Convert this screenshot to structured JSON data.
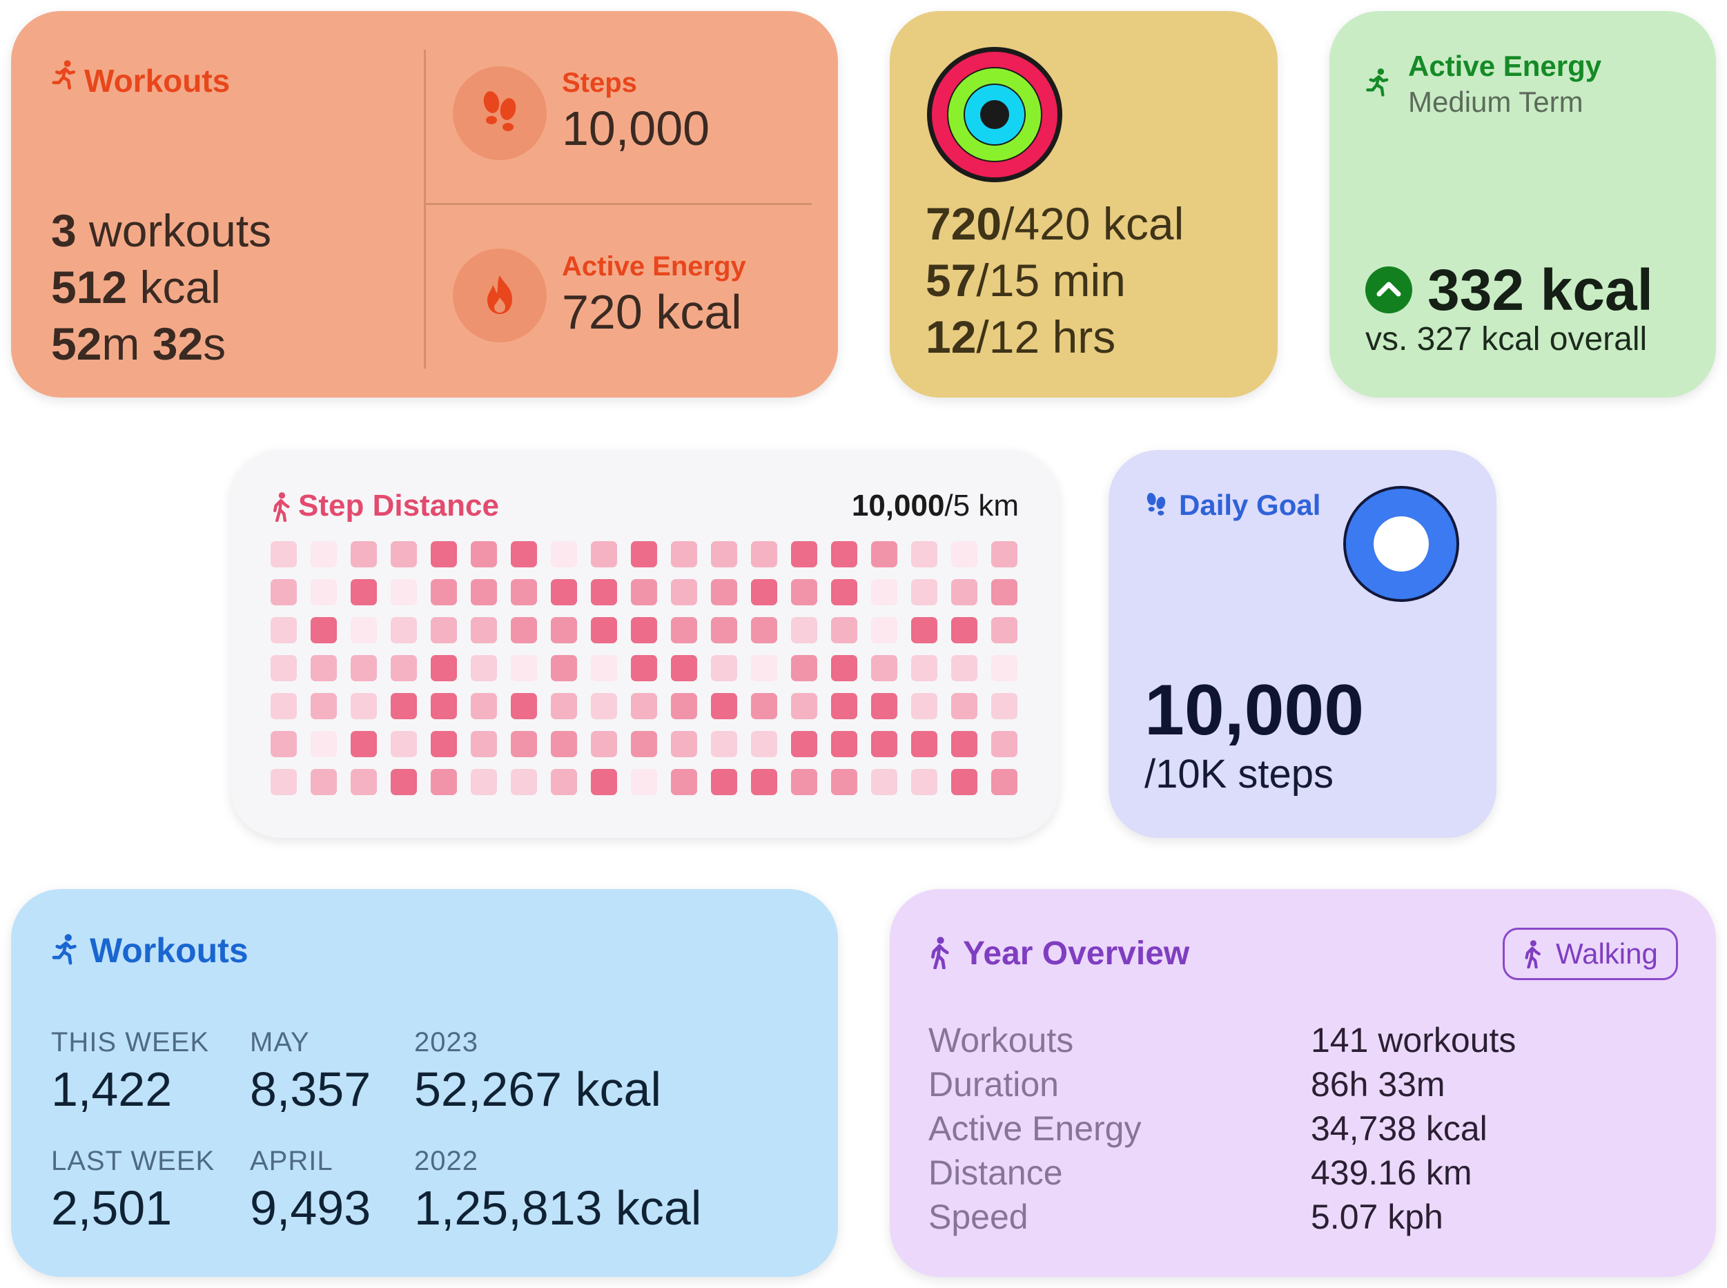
{
  "colors": {
    "workouts_accent": "#e8461c",
    "green_accent": "#158a27",
    "step_pink": "#e24b6e",
    "goal_blue": "#2f62d8",
    "workouts_blue": "#1a66d0",
    "year_purple": "#7f3ec0"
  },
  "workouts_card": {
    "title": "Workouts",
    "count": "3",
    "count_unit": " workouts",
    "energy": "512",
    "energy_unit": " kcal",
    "duration_min": "52",
    "duration_min_unit": "m ",
    "duration_sec": "32",
    "duration_sec_unit": "s",
    "steps_label": "Steps",
    "steps_value": "10,000",
    "active_label": "Active Energy",
    "active_value": "720 kcal"
  },
  "rings_card": {
    "move_current": "720",
    "move_goal": "/420 kcal",
    "exercise_current": "57",
    "exercise_goal": "/15 min",
    "stand_current": "12",
    "stand_goal": "/12 hrs",
    "rings": [
      {
        "name": "move",
        "color": "#ed1f56",
        "track": "#6a0f2a",
        "progress": 1.0
      },
      {
        "name": "exercise",
        "color": "#8bf02c",
        "track": "#2c5a0b",
        "progress": 1.0
      },
      {
        "name": "stand",
        "color": "#14d4f4",
        "track": "#0a4a57",
        "progress": 1.0
      }
    ]
  },
  "energy_card": {
    "title": "Active Energy",
    "subtitle": "Medium Term",
    "value": "332 kcal",
    "comparison": "vs. 327 kcal overall"
  },
  "step_distance_card": {
    "title": "Step Distance",
    "current": "10,000",
    "goal": "/5 km",
    "palette": [
      "#fce8ee",
      "#f8cfda",
      "#f5b2c3",
      "#f194a9",
      "#ec6c89"
    ],
    "grid": [
      [
        1,
        0,
        2,
        2,
        4,
        3,
        4,
        0,
        2,
        4,
        2,
        2,
        2,
        4,
        4,
        3,
        1,
        0,
        2
      ],
      [
        2,
        0,
        4,
        0,
        3,
        3,
        3,
        4,
        4,
        3,
        2,
        3,
        4,
        3,
        4,
        0,
        1,
        2,
        3
      ],
      [
        1,
        4,
        0,
        1,
        2,
        2,
        3,
        3,
        4,
        4,
        3,
        3,
        3,
        1,
        2,
        0,
        4,
        4,
        2
      ],
      [
        1,
        2,
        2,
        2,
        4,
        1,
        0,
        3,
        0,
        4,
        4,
        1,
        0,
        3,
        4,
        2,
        1,
        1,
        0
      ],
      [
        1,
        2,
        1,
        4,
        4,
        2,
        4,
        2,
        1,
        2,
        3,
        4,
        3,
        2,
        4,
        4,
        1,
        2,
        1
      ],
      [
        2,
        0,
        4,
        1,
        4,
        2,
        3,
        3,
        2,
        3,
        2,
        1,
        1,
        4,
        4,
        4,
        4,
        4,
        2
      ],
      [
        1,
        2,
        2,
        4,
        3,
        1,
        1,
        2,
        4,
        0,
        3,
        4,
        4,
        3,
        3,
        1,
        1,
        4,
        3
      ]
    ]
  },
  "daily_goal_card": {
    "title": "Daily Goal",
    "value": "10,000",
    "subtitle": "/10K steps",
    "progress": 1.0
  },
  "workouts_periods_card": {
    "title": "Workouts",
    "periods": [
      {
        "label": "THIS WEEK",
        "value": "1,422"
      },
      {
        "label": "MAY",
        "value": "8,357"
      },
      {
        "label": "2023",
        "value": "52,267 kcal"
      },
      {
        "label": "LAST WEEK",
        "value": "2,501"
      },
      {
        "label": "APRIL",
        "value": "9,493"
      },
      {
        "label": "2022",
        "value": "1,25,813 kcal"
      }
    ]
  },
  "year_overview_card": {
    "title": "Year Overview",
    "filter": "Walking",
    "rows": [
      {
        "label": "Workouts",
        "value": "141 workouts"
      },
      {
        "label": "Duration",
        "value": "86h 33m"
      },
      {
        "label": "Active Energy",
        "value": "34,738 kcal"
      },
      {
        "label": "Distance",
        "value": "439.16 km"
      },
      {
        "label": "Speed",
        "value": "5.07 kph"
      }
    ]
  }
}
